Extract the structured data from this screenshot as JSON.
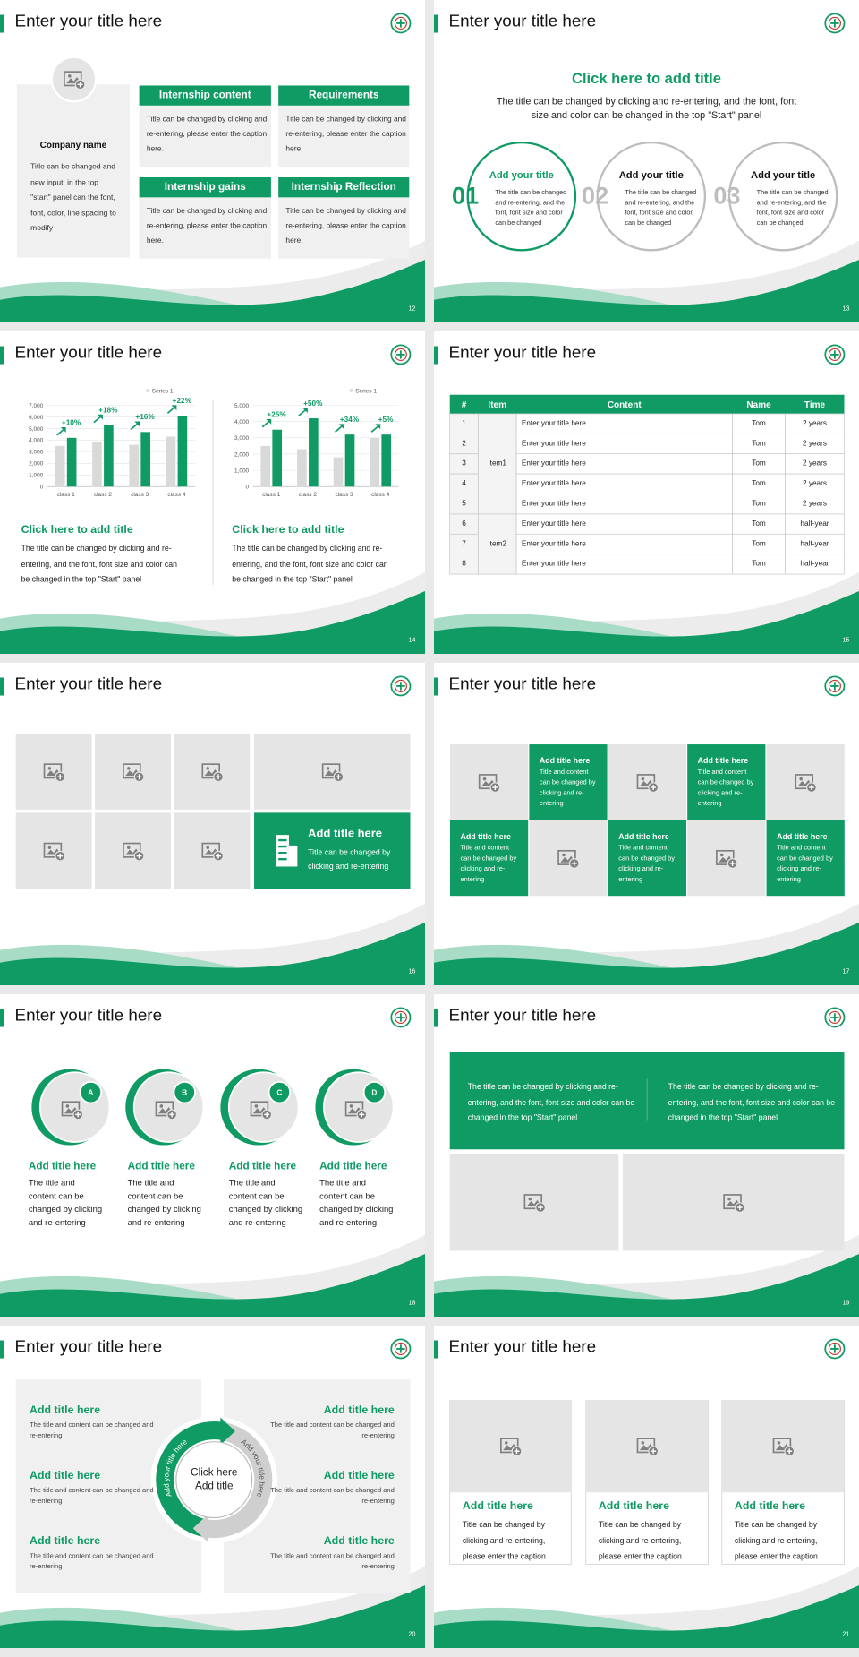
{
  "slides": [
    {
      "number": "12",
      "title": "Enter your title here",
      "company": {
        "name": "Company name",
        "text": "Title can be changed and new input, in the top \"start\" panel can the font, font, color, line spacing to modify"
      },
      "boxes": [
        {
          "heading": "Internship content",
          "text": "Title can be changed by clicking and re-entering, please enter the caption here."
        },
        {
          "heading": "Requirements",
          "text": "Title can be changed by clicking and re-entering, please enter the caption here."
        },
        {
          "heading": "Internship gains",
          "text": "Title can be changed by clicking and re-entering, please enter the caption here."
        },
        {
          "heading": "Internship Reflection",
          "text": "Title can be changed by clicking and re-entering, please enter the caption here."
        }
      ]
    },
    {
      "number": "13",
      "title": "Enter your title here",
      "heading": "Click here to add title",
      "subtitle": "The title can be changed by clicking and re-entering, and the font, font size and color can be changed in the top \"Start\" panel",
      "items": [
        {
          "num": "01",
          "title": "Add your title",
          "text": "The title can be changed and re-entering, and the font, font size and color can be changed"
        },
        {
          "num": "02",
          "title": "Add your title",
          "text": "The title can be changed and re-entering, and the font, font size and color can be changed"
        },
        {
          "num": "03",
          "title": "Add your title",
          "text": "The title can be changed and re-entering, and the font, font size and color can be changed"
        }
      ]
    },
    {
      "number": "14",
      "title": "Enter your title here",
      "blocks": [
        {
          "heading": "Click here to add title",
          "text": "The title can be changed by clicking and re-entering, and the font, font size and color can be changed in the top \"Start\" panel"
        },
        {
          "heading": "Click here to add title",
          "text": "The title can be changed by clicking and re-entering, and the font, font size and color can be changed in the top \"Start\" panel"
        }
      ]
    },
    {
      "number": "15",
      "title": "Enter your title here",
      "table": {
        "header": [
          "#",
          "Item",
          "Content",
          "Name",
          "Time"
        ],
        "groups": [
          "Item1",
          "Item2"
        ],
        "rows": [
          [
            "1",
            "Enter your title here",
            "Tom",
            "2 years"
          ],
          [
            "2",
            "Enter your title here",
            "Tom",
            "2 years"
          ],
          [
            "3",
            "Enter your title here",
            "Tom",
            "2 years"
          ],
          [
            "4",
            "Enter your title here",
            "Tom",
            "2 years"
          ],
          [
            "5",
            "Enter your title here",
            "Tom",
            "2 years"
          ],
          [
            "6",
            "Enter your title here",
            "Tom",
            "half-year"
          ],
          [
            "7",
            "Enter your title here",
            "Tom",
            "half-year"
          ],
          [
            "8",
            "Enter your title here",
            "Tom",
            "half-year"
          ]
        ]
      }
    },
    {
      "number": "16",
      "title": "Enter your title here",
      "feature": {
        "title": "Add title here",
        "text": "Title can be changed by clicking and re-entering"
      }
    },
    {
      "number": "17",
      "title": "Enter your title here",
      "cards": [
        {
          "title": "Add title here",
          "text": "Title and content can be changed by clicking and re-entering"
        },
        {
          "title": "Add title here",
          "text": "Title and content can be changed by clicking and re-entering"
        },
        {
          "title": "Add title here",
          "text": "Title and content can be changed by clicking and re-entering"
        },
        {
          "title": "Add title here",
          "text": "Title and content can be changed by clicking and re-entering"
        },
        {
          "title": "Add title here",
          "text": "Title and content can be changed by clicking and re-entering"
        }
      ]
    },
    {
      "number": "18",
      "title": "Enter your title here",
      "items": [
        {
          "letter": "A",
          "title": "Add title here",
          "text": "The title and content can be changed by clicking and re-entering"
        },
        {
          "letter": "B",
          "title": "Add title here",
          "text": "The title and content can be changed by clicking and re-entering"
        },
        {
          "letter": "C",
          "title": "Add title here",
          "text": "The title and content can be changed by clicking and re-entering"
        },
        {
          "letter": "D",
          "title": "Add title here",
          "text": "The title and content can be changed by clicking and re-entering"
        }
      ]
    },
    {
      "number": "19",
      "title": "Enter your title here",
      "texts": [
        "The title can be changed by clicking and re-entering, and the font, font size and color can be changed in the top \"Start\" panel",
        "The title can be changed by clicking and re-entering, and the font, font size and color can be changed in the top \"Start\" panel"
      ]
    },
    {
      "number": "20",
      "title": "Enter your title here",
      "center": "Click here Add title",
      "arc_left": "Add your title here",
      "arc_right": "Add your title here",
      "items": [
        {
          "title": "Add title here",
          "text": "The title and content can be changed and re-entering"
        },
        {
          "title": "Add title here",
          "text": "The title and content can be changed and re-entering"
        },
        {
          "title": "Add title here",
          "text": "The title and content can be changed and re-entering"
        },
        {
          "title": "Add title here",
          "text": "The title and content can be changed and re-entering"
        },
        {
          "title": "Add title here",
          "text": "The title and content can be changed and re-entering"
        },
        {
          "title": "Add title here",
          "text": "The title and content can be changed and re-entering"
        }
      ]
    },
    {
      "number": "21",
      "title": "Enter your title here",
      "cards": [
        {
          "title": "Add title here",
          "text": "Title can be changed by clicking and re-entering, please enter the caption"
        },
        {
          "title": "Add title here",
          "text": "Title can be changed by clicking and re-entering, please enter the caption"
        },
        {
          "title": "Add title here",
          "text": "Title can be changed by clicking and re-entering, please enter the caption"
        }
      ]
    }
  ],
  "chart_data": [
    {
      "type": "bar",
      "categories": [
        "class 1",
        "class 2",
        "class 3",
        "class 4"
      ],
      "series": [
        {
          "name": "Series 1",
          "color": "#d9d9d9",
          "values": [
            3500,
            3800,
            3600,
            4300
          ]
        },
        {
          "color": "#0f9b63",
          "values": [
            4200,
            5300,
            4700,
            6100
          ]
        }
      ],
      "annotations": [
        "+10%",
        "+18%",
        "+16%",
        "+22%"
      ],
      "ylim": [
        0,
        7000
      ],
      "yticks": [
        0,
        {
          "value": 1000,
          "label": "1,000"
        },
        {
          "value": 2000,
          "label": "2,000"
        },
        {
          "value": 3000,
          "label": "3,000"
        },
        {
          "value": 4000,
          "label": "4,000"
        },
        {
          "value": 5000,
          "label": "5,000"
        },
        {
          "value": 6000,
          "label": "6,000"
        },
        {
          "value": 7000,
          "label": "7,000"
        }
      ],
      "grid": true,
      "legend": "top-right"
    },
    {
      "type": "bar",
      "categories": [
        "class 1",
        "class 2",
        "class 3",
        "class 4"
      ],
      "series": [
        {
          "name": "Series 1",
          "color": "#d9d9d9",
          "values": [
            2500,
            2300,
            1800,
            3000
          ]
        },
        {
          "color": "#0f9b63",
          "values": [
            3500,
            4200,
            3200,
            3200
          ]
        }
      ],
      "annotations": [
        "+25%",
        "+50%",
        "+34%",
        "+5%"
      ],
      "ylim": [
        0,
        5000
      ],
      "yticks": [
        0,
        {
          "value": 1000,
          "label": "1,000"
        },
        {
          "value": 2000,
          "label": "2,000"
        },
        {
          "value": 3000,
          "label": "3,000"
        },
        {
          "value": 4000,
          "label": "4,000"
        },
        {
          "value": 5000,
          "label": "5,000"
        }
      ],
      "grid": true,
      "legend": "top-right"
    }
  ]
}
